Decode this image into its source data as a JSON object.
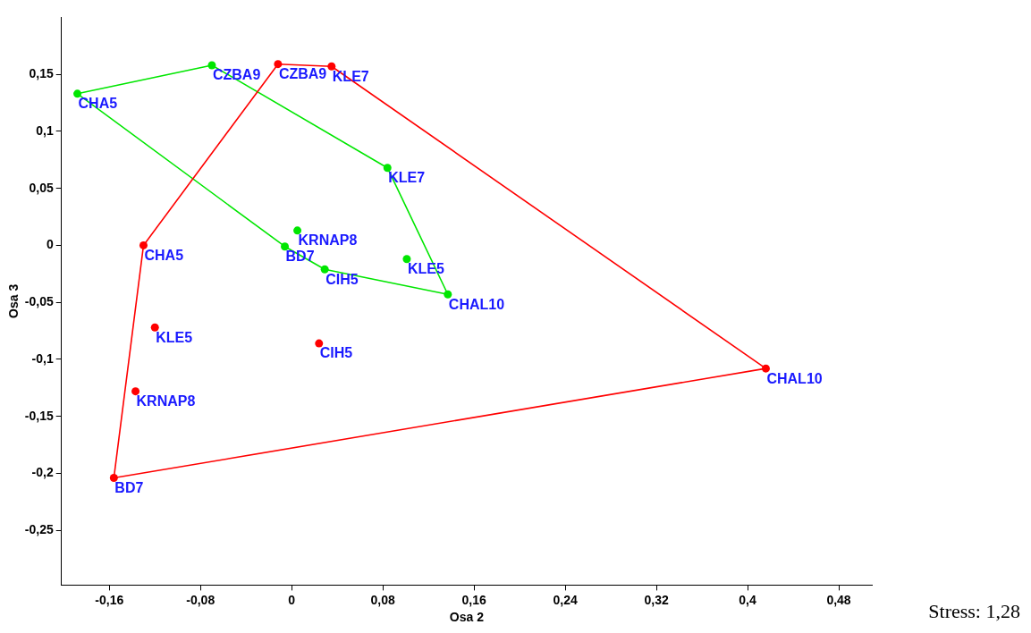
{
  "chart_data": {
    "type": "scatter",
    "xlabel": "Osa 2",
    "ylabel": "Osa 3",
    "xlim": [
      -0.202,
      0.509
    ],
    "ylim": [
      -0.298,
      0.2
    ],
    "xticks": [
      {
        "value": -0.16,
        "label": "-0,16"
      },
      {
        "value": -0.08,
        "label": "-0,08"
      },
      0,
      {
        "value": 0.08,
        "label": "0,08"
      },
      {
        "value": 0.16,
        "label": "0,16"
      },
      {
        "value": 0.24,
        "label": "0,24"
      },
      {
        "value": 0.32,
        "label": "0,32"
      },
      {
        "value": 0.4,
        "label": "0,4"
      },
      {
        "value": 0.48,
        "label": "0,48"
      }
    ],
    "yticks": [
      {
        "value": 0.15,
        "label": "0,15"
      },
      {
        "value": 0.1,
        "label": "0,1"
      },
      {
        "value": 0.05,
        "label": "0,05"
      },
      0,
      {
        "value": -0.05,
        "label": "-0,05"
      },
      {
        "value": -0.1,
        "label": "-0,1"
      },
      {
        "value": -0.15,
        "label": "-0,15"
      },
      {
        "value": -0.2,
        "label": "-0,2"
      },
      {
        "value": -0.25,
        "label": "-0,25"
      }
    ],
    "grid": false,
    "legend": false,
    "series": [
      {
        "type": "line",
        "color": "#ff0000",
        "marker": "none",
        "line_style": "solid",
        "x": [
          -0.156,
          -0.13,
          -0.012,
          0.035,
          0.416
        ],
        "values": [
          -0.204,
          0,
          0.159,
          0.157,
          -0.108
        ]
      },
      {
        "type": "line",
        "color": "#ff0000",
        "marker": "none",
        "line_style": "solid",
        "x": [
          -0.156,
          0.416
        ],
        "values": [
          -0.204,
          -0.108
        ]
      },
      {
        "type": "line",
        "color": "#00e600",
        "marker": "none",
        "line_style": "solid",
        "x": [
          -0.188,
          -0.07,
          0.084,
          0.137
        ],
        "values": [
          0.133,
          0.158,
          0.068,
          -0.043
        ]
      },
      {
        "type": "line",
        "color": "#00e600",
        "marker": "none",
        "line_style": "solid",
        "x": [
          -0.188,
          -0.006,
          0.029,
          0.137
        ],
        "values": [
          0.133,
          -0.001,
          -0.021,
          -0.043
        ]
      },
      {
        "color": "#ff0000",
        "marker": "circle",
        "x": [
          -0.012,
          0.035,
          0.416,
          -0.156,
          -0.13,
          -0.12,
          -0.137,
          0.024
        ],
        "values": [
          0.159,
          0.157,
          -0.108,
          -0.204,
          0,
          -0.072,
          -0.128,
          -0.086
        ]
      },
      {
        "color": "#00e600",
        "marker": "circle",
        "x": [
          -0.188,
          -0.07,
          0.084,
          0.137,
          0.029,
          -0.006,
          0.005,
          0.101
        ],
        "values": [
          0.133,
          0.158,
          0.068,
          -0.043,
          -0.021,
          -0.001,
          0.013,
          -0.012
        ]
      }
    ],
    "annotations": [
      {
        "text": "CZBA9",
        "x": -0.012,
        "y": 0.159
      },
      {
        "text": "KLE7",
        "x": 0.035,
        "y": 0.157
      },
      {
        "text": "CHAL10",
        "x": 0.416,
        "y": -0.108
      },
      {
        "text": "BD7",
        "x": -0.156,
        "y": -0.204
      },
      {
        "text": "CHA5",
        "x": -0.13,
        "y": 0
      },
      {
        "text": "KLE5",
        "x": -0.12,
        "y": -0.072
      },
      {
        "text": "KRNAP8",
        "x": -0.137,
        "y": -0.128
      },
      {
        "text": "CIH5",
        "x": 0.024,
        "y": -0.086
      },
      {
        "text": "CHA5",
        "x": -0.188,
        "y": 0.133
      },
      {
        "text": "CZBA9",
        "x": -0.07,
        "y": 0.158
      },
      {
        "text": "KLE7",
        "x": 0.084,
        "y": 0.068
      },
      {
        "text": "CHAL10",
        "x": 0.137,
        "y": -0.043
      },
      {
        "text": "CIH5",
        "x": 0.029,
        "y": -0.021
      },
      {
        "text": "BD7",
        "x": -0.006,
        "y": -0.001
      },
      {
        "text": "KRNAP8",
        "x": 0.005,
        "y": 0.013
      },
      {
        "text": "KLE5",
        "x": 0.101,
        "y": -0.012
      },
      "Stress: 1,28"
    ]
  }
}
